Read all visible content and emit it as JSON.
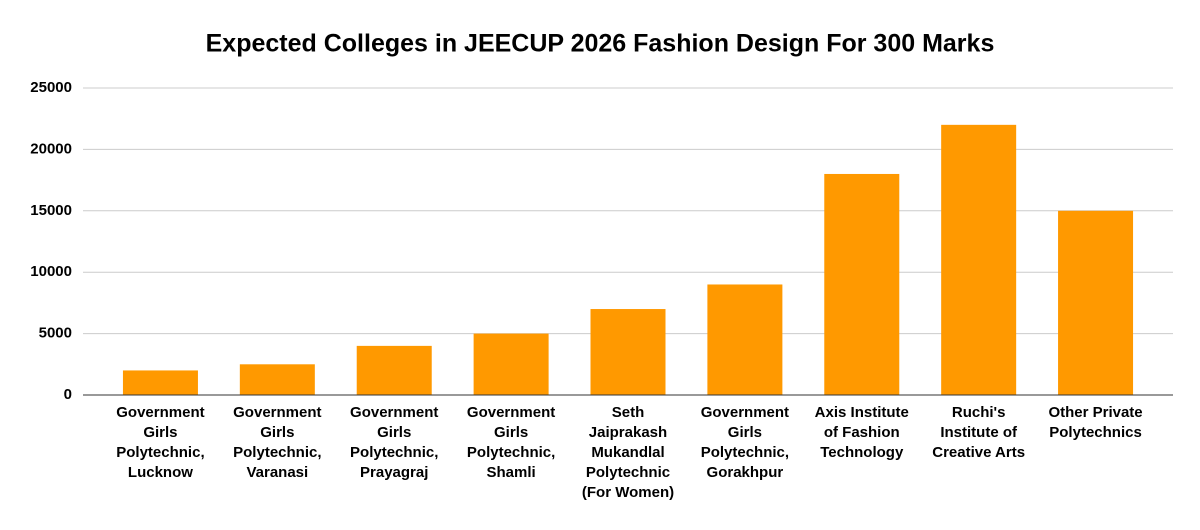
{
  "chart_data": {
    "type": "bar",
    "title": "Expected Colleges in JEECUP 2026 Fashion Design For 300 Marks",
    "categories": [
      "Government Girls Polytechnic, Lucknow",
      "Government Girls Polytechnic, Varanasi",
      "Government Girls Polytechnic, Prayagraj",
      "Government Girls Polytechnic, Shamli",
      "Seth Jaiprakash Mukandlal Polytechnic (For Women)",
      "Government Girls Polytechnic, Gorakhpur",
      "Axis Institute of Fashion Technology",
      "Ruchi's Institute of Creative Arts",
      "Other Private Polytechnics"
    ],
    "values": [
      2000,
      2500,
      4000,
      5000,
      7000,
      9000,
      18000,
      22000,
      15000
    ],
    "color": "#ff9900",
    "ylim": [
      0,
      25000
    ],
    "yticks": [
      0,
      5000,
      10000,
      15000,
      20000,
      25000
    ],
    "grid": true
  }
}
